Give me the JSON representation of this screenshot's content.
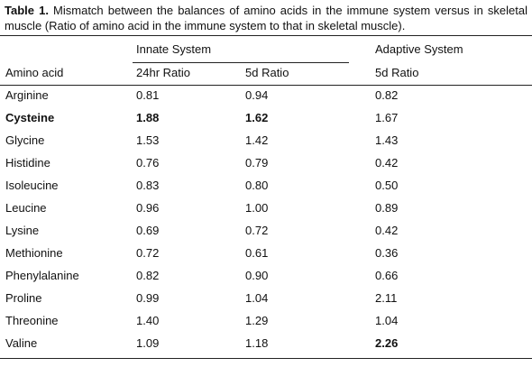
{
  "caption": {
    "label": "Table 1.",
    "text": " Mismatch between the balances of amino acids in the immune system versus in skeletal muscle (Ratio of amino acid in the immune system to that in skeletal muscle)."
  },
  "table": {
    "group_headers": {
      "innate": "Innate System",
      "adaptive": "Adaptive System"
    },
    "column_headers": {
      "amino_acid": "Amino acid",
      "innate_24hr": "24hr Ratio",
      "innate_5d": "5d Ratio",
      "adaptive_5d": "5d Ratio"
    },
    "rows": [
      {
        "name": "Arginine",
        "innate_24hr": "0.81",
        "innate_5d": "0.94",
        "adaptive_5d": "0.82",
        "bold": []
      },
      {
        "name": "Cysteine",
        "innate_24hr": "1.88",
        "innate_5d": "1.62",
        "adaptive_5d": "1.67",
        "bold": [
          "name",
          "innate_24hr",
          "innate_5d"
        ]
      },
      {
        "name": "Glycine",
        "innate_24hr": "1.53",
        "innate_5d": "1.42",
        "adaptive_5d": "1.43",
        "bold": []
      },
      {
        "name": "Histidine",
        "innate_24hr": "0.76",
        "innate_5d": "0.79",
        "adaptive_5d": "0.42",
        "bold": []
      },
      {
        "name": "Isoleucine",
        "innate_24hr": "0.83",
        "innate_5d": "0.80",
        "adaptive_5d": "0.50",
        "bold": []
      },
      {
        "name": "Leucine",
        "innate_24hr": "0.96",
        "innate_5d": "1.00",
        "adaptive_5d": "0.89",
        "bold": []
      },
      {
        "name": "Lysine",
        "innate_24hr": "0.69",
        "innate_5d": "0.72",
        "adaptive_5d": "0.42",
        "bold": []
      },
      {
        "name": "Methionine",
        "innate_24hr": "0.72",
        "innate_5d": "0.61",
        "adaptive_5d": "0.36",
        "bold": []
      },
      {
        "name": "Phenylalanine",
        "innate_24hr": "0.82",
        "innate_5d": "0.90",
        "adaptive_5d": "0.66",
        "bold": []
      },
      {
        "name": "Proline",
        "innate_24hr": "0.99",
        "innate_5d": "1.04",
        "adaptive_5d": "2.11",
        "bold": []
      },
      {
        "name": "Threonine",
        "innate_24hr": "1.40",
        "innate_5d": "1.29",
        "adaptive_5d": "1.04",
        "bold": []
      },
      {
        "name": "Valine",
        "innate_24hr": "1.09",
        "innate_5d": "1.18",
        "adaptive_5d": "2.26",
        "bold": [
          "adaptive_5d"
        ]
      }
    ]
  }
}
